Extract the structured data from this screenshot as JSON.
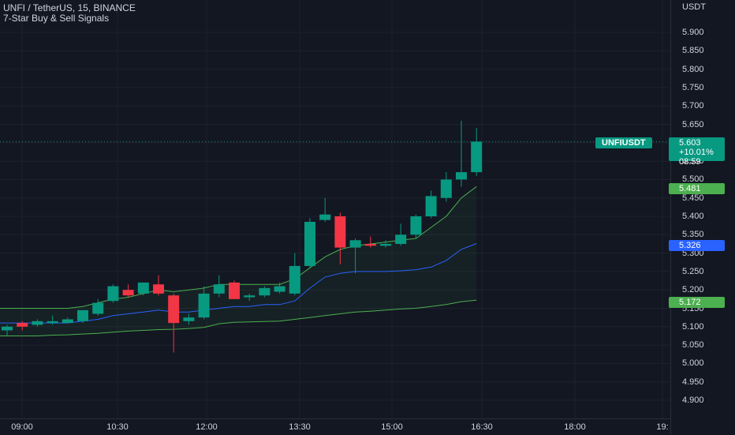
{
  "legend": {
    "title": "UNFI / TetherUS, 15, BINANCE",
    "indicator": "7-Star Buy & Sell Signals"
  },
  "price_axis": {
    "currency": "USDT",
    "ticks": [
      "5.900",
      "5.850",
      "5.800",
      "5.750",
      "5.700",
      "5.650",
      "5.600",
      "5.550",
      "5.500",
      "5.450",
      "5.400",
      "5.350",
      "5.300",
      "5.250",
      "5.200",
      "5.150",
      "5.100",
      "5.050",
      "5.000",
      "4.950",
      "4.900"
    ],
    "tick_values": [
      5.9,
      5.85,
      5.8,
      5.75,
      5.7,
      5.65,
      5.6,
      5.55,
      5.5,
      5.45,
      5.4,
      5.35,
      5.3,
      5.25,
      5.2,
      5.15,
      5.1,
      5.05,
      5.0,
      4.95,
      4.9
    ]
  },
  "time_axis": {
    "ticks": [
      "09:00",
      "10:30",
      "12:00",
      "13:30",
      "15:00",
      "16:30",
      "18:00",
      "19:"
    ]
  },
  "last_price": {
    "symbol": "UNFIUSDT",
    "price": "5.603",
    "change": "+10.01%",
    "countdown": "08:59"
  },
  "indicator_labels": {
    "upper": "5.481",
    "middle": "5.326",
    "lower": "5.172"
  },
  "colors": {
    "background": "#131722",
    "up": "#089981",
    "down": "#f23645",
    "band_upper": "#4caf50",
    "band_middle": "#2962ff",
    "band_lower": "#4caf50",
    "grid": "#1e222d"
  },
  "chart_data": {
    "type": "candlestick",
    "ylim": [
      4.88,
      5.95
    ],
    "candles": [
      {
        "o": 5.09,
        "h": 5.105,
        "l": 5.075,
        "c": 5.1
      },
      {
        "o": 5.11,
        "h": 5.115,
        "l": 5.09,
        "c": 5.1
      },
      {
        "o": 5.105,
        "h": 5.12,
        "l": 5.1,
        "c": 5.115
      },
      {
        "o": 5.11,
        "h": 5.13,
        "l": 5.105,
        "c": 5.115
      },
      {
        "o": 5.11,
        "h": 5.125,
        "l": 5.11,
        "c": 5.12
      },
      {
        "o": 5.115,
        "h": 5.145,
        "l": 5.11,
        "c": 5.145
      },
      {
        "o": 5.135,
        "h": 5.175,
        "l": 5.13,
        "c": 5.165
      },
      {
        "o": 5.17,
        "h": 5.215,
        "l": 5.165,
        "c": 5.21
      },
      {
        "o": 5.2,
        "h": 5.215,
        "l": 5.18,
        "c": 5.185
      },
      {
        "o": 5.19,
        "h": 5.22,
        "l": 5.185,
        "c": 5.22
      },
      {
        "o": 5.215,
        "h": 5.24,
        "l": 5.185,
        "c": 5.19
      },
      {
        "o": 5.185,
        "h": 5.19,
        "l": 5.03,
        "c": 5.11
      },
      {
        "o": 5.115,
        "h": 5.135,
        "l": 5.105,
        "c": 5.125
      },
      {
        "o": 5.125,
        "h": 5.21,
        "l": 5.12,
        "c": 5.19
      },
      {
        "o": 5.19,
        "h": 5.24,
        "l": 5.18,
        "c": 5.215
      },
      {
        "o": 5.22,
        "h": 5.225,
        "l": 5.175,
        "c": 5.175
      },
      {
        "o": 5.18,
        "h": 5.19,
        "l": 5.17,
        "c": 5.185
      },
      {
        "o": 5.185,
        "h": 5.21,
        "l": 5.18,
        "c": 5.205
      },
      {
        "o": 5.195,
        "h": 5.22,
        "l": 5.19,
        "c": 5.21
      },
      {
        "o": 5.19,
        "h": 5.3,
        "l": 5.185,
        "c": 5.265
      },
      {
        "o": 5.265,
        "h": 5.395,
        "l": 5.26,
        "c": 5.385
      },
      {
        "o": 5.39,
        "h": 5.45,
        "l": 5.385,
        "c": 5.405
      },
      {
        "o": 5.4,
        "h": 5.41,
        "l": 5.27,
        "c": 5.315
      },
      {
        "o": 5.315,
        "h": 5.34,
        "l": 5.245,
        "c": 5.335
      },
      {
        "o": 5.325,
        "h": 5.345,
        "l": 5.315,
        "c": 5.32
      },
      {
        "o": 5.32,
        "h": 5.335,
        "l": 5.315,
        "c": 5.325
      },
      {
        "o": 5.325,
        "h": 5.38,
        "l": 5.32,
        "c": 5.35
      },
      {
        "o": 5.35,
        "h": 5.405,
        "l": 5.34,
        "c": 5.4
      },
      {
        "o": 5.4,
        "h": 5.47,
        "l": 5.395,
        "c": 5.455
      },
      {
        "o": 5.45,
        "h": 5.52,
        "l": 5.44,
        "c": 5.5
      },
      {
        "o": 5.5,
        "h": 5.66,
        "l": 5.48,
        "c": 5.52
      },
      {
        "o": 5.52,
        "h": 5.64,
        "l": 5.51,
        "c": 5.603
      }
    ],
    "band_upper": [
      5.15,
      5.15,
      5.15,
      5.15,
      5.15,
      5.155,
      5.165,
      5.175,
      5.18,
      5.19,
      5.2,
      5.195,
      5.2,
      5.205,
      5.215,
      5.215,
      5.215,
      5.215,
      5.215,
      5.23,
      5.26,
      5.29,
      5.31,
      5.32,
      5.325,
      5.33,
      5.335,
      5.34,
      5.37,
      5.4,
      5.45,
      5.481
    ],
    "band_middle": [
      5.11,
      5.11,
      5.11,
      5.11,
      5.11,
      5.115,
      5.12,
      5.13,
      5.135,
      5.14,
      5.145,
      5.14,
      5.14,
      5.145,
      5.15,
      5.155,
      5.155,
      5.16,
      5.16,
      5.17,
      5.205,
      5.235,
      5.245,
      5.25,
      5.25,
      5.25,
      5.252,
      5.255,
      5.262,
      5.28,
      5.31,
      5.326
    ],
    "band_lower": [
      5.075,
      5.075,
      5.075,
      5.077,
      5.078,
      5.08,
      5.082,
      5.085,
      5.088,
      5.09,
      5.092,
      5.093,
      5.095,
      5.098,
      5.108,
      5.112,
      5.113,
      5.114,
      5.115,
      5.12,
      5.125,
      5.13,
      5.135,
      5.14,
      5.142,
      5.145,
      5.148,
      5.15,
      5.155,
      5.16,
      5.168,
      5.172
    ]
  }
}
